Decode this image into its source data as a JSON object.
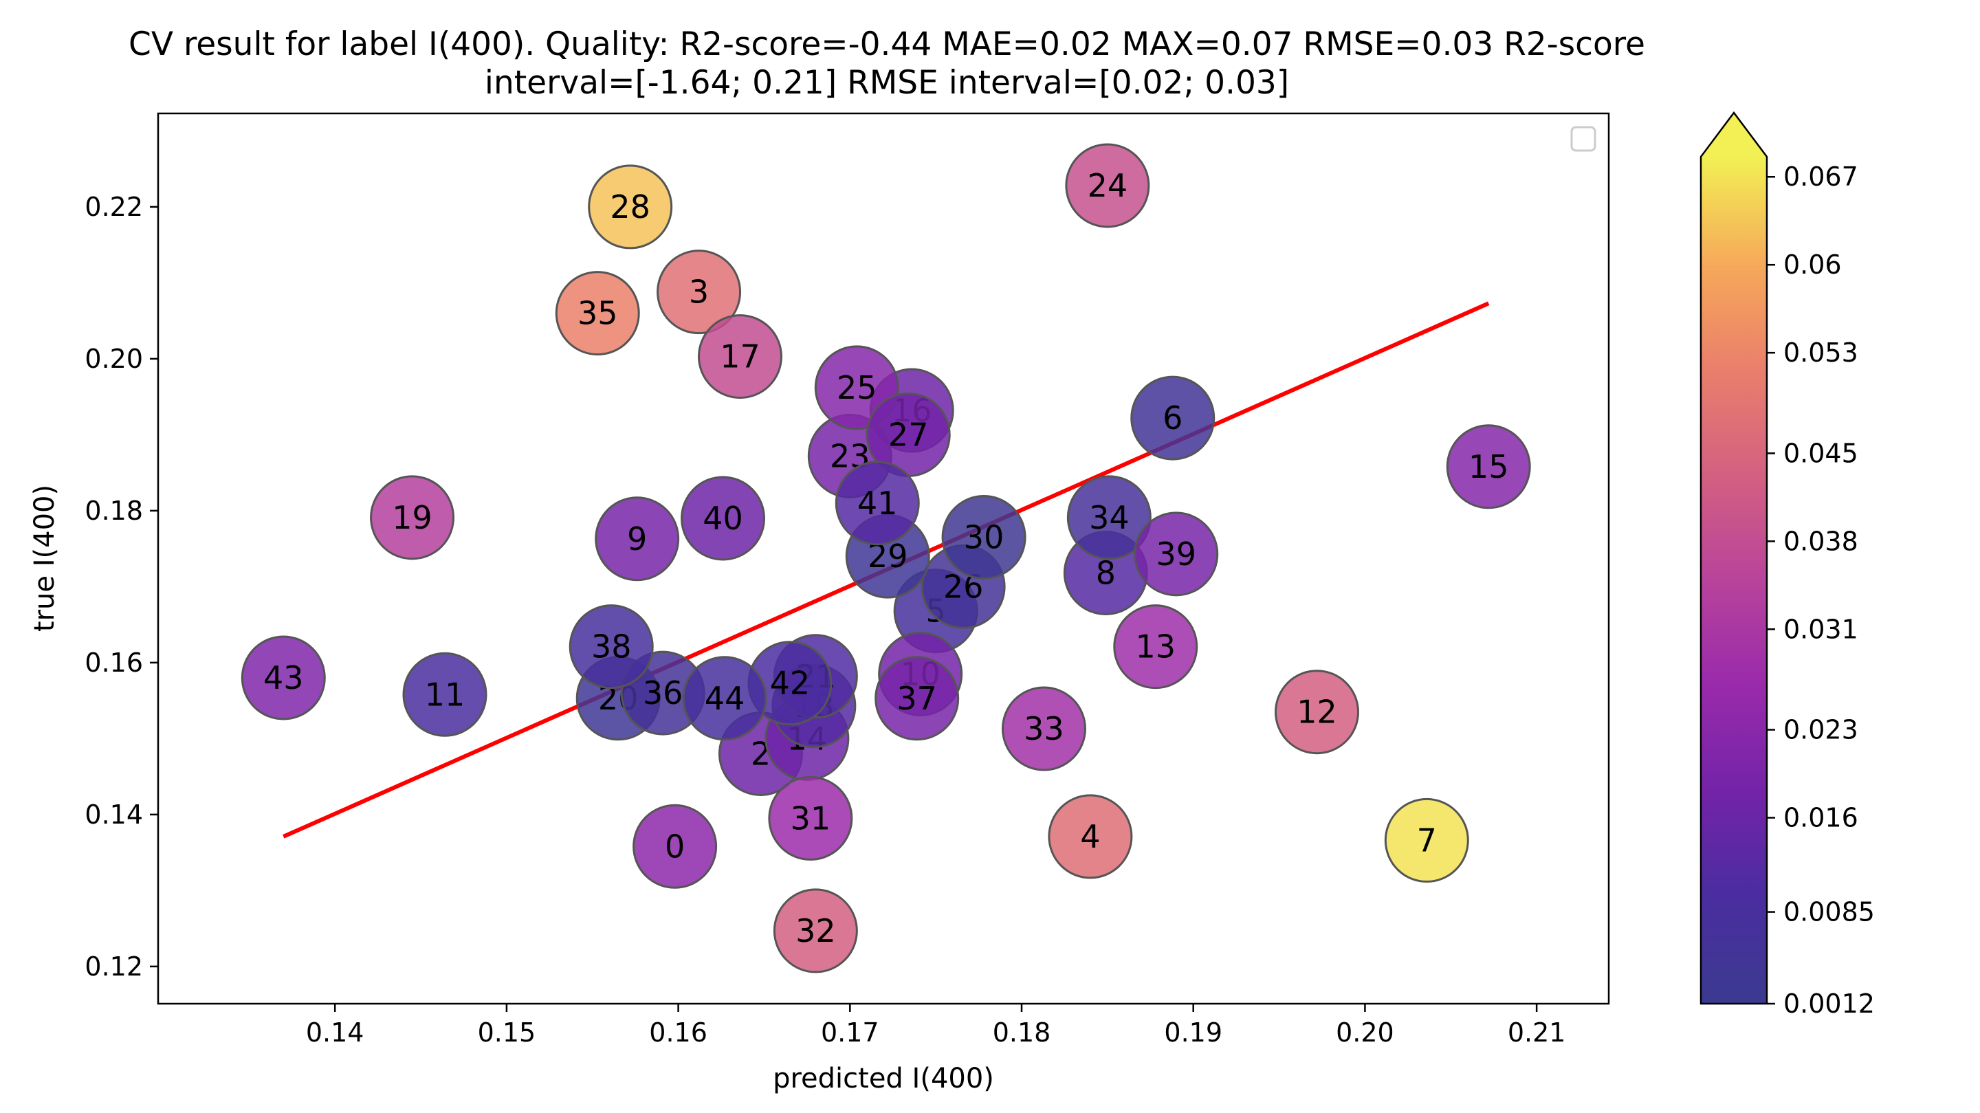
{
  "chart_data": {
    "type": "scatter",
    "title_line1": "CV result for label I(400). Quality: R2-score=-0.44 MAE=0.02 MAX=0.07 RMSE=0.03 R2-score",
    "title_line2": "interval=[-1.64; 0.21] RMSE interval=[0.02; 0.03]",
    "xlabel": "predicted I(400)",
    "ylabel": "true I(400)",
    "xlim": [
      0.1297,
      0.2142
    ],
    "ylim": [
      0.1151,
      0.2323
    ],
    "xticks": [
      0.14,
      0.15,
      0.16,
      0.17,
      0.18,
      0.19,
      0.2,
      0.21
    ],
    "xtick_labels": [
      "0.14",
      "0.15",
      "0.16",
      "0.17",
      "0.18",
      "0.19",
      "0.20",
      "0.21"
    ],
    "yticks": [
      0.12,
      0.14,
      0.16,
      0.18,
      0.2,
      0.22
    ],
    "ytick_labels": [
      "0.12",
      "0.14",
      "0.16",
      "0.18",
      "0.20",
      "0.22"
    ],
    "colorbar": {
      "colormap": "plasma",
      "range": [
        0.0012,
        0.0686
      ],
      "extend": "max",
      "tick_values": [
        0.0012,
        0.0085,
        0.016,
        0.023,
        0.031,
        0.038,
        0.045,
        0.053,
        0.06,
        0.067
      ],
      "tick_labels": [
        "0.0012",
        "0.0085",
        "0.016",
        "0.023",
        "0.031",
        "0.038",
        "0.045",
        "0.053",
        "0.06",
        "0.067"
      ]
    },
    "fit_line": {
      "color": "#ff0000",
      "x": [
        0.137,
        0.2072
      ],
      "y": [
        0.1371,
        0.2073
      ]
    },
    "legend": "top-right (empty)",
    "grid": false,
    "points": [
      {
        "label": "0",
        "x": 0.1598,
        "y": 0.1358,
        "error": 0.024
      },
      {
        "label": "2",
        "x": 0.1648,
        "y": 0.148,
        "error": 0.017
      },
      {
        "label": "3",
        "x": 0.1612,
        "y": 0.2088,
        "error": 0.048
      },
      {
        "label": "4",
        "x": 0.184,
        "y": 0.1371,
        "error": 0.047
      },
      {
        "label": "5",
        "x": 0.175,
        "y": 0.1668,
        "error": 0.008
      },
      {
        "label": "6",
        "x": 0.1888,
        "y": 0.1922,
        "error": 0.005
      },
      {
        "label": "7",
        "x": 0.2036,
        "y": 0.1366,
        "error": 0.067
      },
      {
        "label": "8",
        "x": 0.1849,
        "y": 0.1718,
        "error": 0.012
      },
      {
        "label": "9",
        "x": 0.1576,
        "y": 0.1763,
        "error": 0.019
      },
      {
        "label": "10",
        "x": 0.1741,
        "y": 0.1585,
        "error": 0.018
      },
      {
        "label": "11",
        "x": 0.1464,
        "y": 0.1558,
        "error": 0.009
      },
      {
        "label": "12",
        "x": 0.1972,
        "y": 0.1535,
        "error": 0.043
      },
      {
        "label": "13",
        "x": 0.1878,
        "y": 0.1621,
        "error": 0.028
      },
      {
        "label": "14",
        "x": 0.1675,
        "y": 0.15,
        "error": 0.017
      },
      {
        "label": "15",
        "x": 0.2072,
        "y": 0.1858,
        "error": 0.022
      },
      {
        "label": "16",
        "x": 0.1736,
        "y": 0.1932,
        "error": 0.017
      },
      {
        "label": "17",
        "x": 0.1636,
        "y": 0.2003,
        "error": 0.038
      },
      {
        "label": "18",
        "x": 0.1679,
        "y": 0.1543,
        "error": 0.012
      },
      {
        "label": "19",
        "x": 0.1445,
        "y": 0.1791,
        "error": 0.034
      },
      {
        "label": "20",
        "x": 0.1565,
        "y": 0.1553,
        "error": 0.004
      },
      {
        "label": "21",
        "x": 0.168,
        "y": 0.1582,
        "error": 0.011
      },
      {
        "label": "23",
        "x": 0.17,
        "y": 0.1872,
        "error": 0.019
      },
      {
        "label": "24",
        "x": 0.185,
        "y": 0.2228,
        "error": 0.039
      },
      {
        "label": "25",
        "x": 0.1704,
        "y": 0.1962,
        "error": 0.022
      },
      {
        "label": "26",
        "x": 0.1766,
        "y": 0.17,
        "error": 0.006
      },
      {
        "label": "27",
        "x": 0.1734,
        "y": 0.19,
        "error": 0.018
      },
      {
        "label": "28",
        "x": 0.1572,
        "y": 0.22,
        "error": 0.063
      },
      {
        "label": "29",
        "x": 0.1722,
        "y": 0.174,
        "error": 0.004
      },
      {
        "label": "30",
        "x": 0.1778,
        "y": 0.1765,
        "error": 0.003
      },
      {
        "label": "31",
        "x": 0.1677,
        "y": 0.1395,
        "error": 0.027
      },
      {
        "label": "32",
        "x": 0.168,
        "y": 0.1247,
        "error": 0.043
      },
      {
        "label": "33",
        "x": 0.1813,
        "y": 0.1513,
        "error": 0.029
      },
      {
        "label": "34",
        "x": 0.1851,
        "y": 0.1791,
        "error": 0.007
      },
      {
        "label": "35",
        "x": 0.1553,
        "y": 0.206,
        "error": 0.052
      },
      {
        "label": "36",
        "x": 0.1591,
        "y": 0.156,
        "error": 0.006
      },
      {
        "label": "37",
        "x": 0.1739,
        "y": 0.1553,
        "error": 0.019
      },
      {
        "label": "38",
        "x": 0.1561,
        "y": 0.1621,
        "error": 0.008
      },
      {
        "label": "39",
        "x": 0.189,
        "y": 0.1743,
        "error": 0.019
      },
      {
        "label": "40",
        "x": 0.1626,
        "y": 0.179,
        "error": 0.017
      },
      {
        "label": "41",
        "x": 0.1716,
        "y": 0.181,
        "error": 0.012
      },
      {
        "label": "42",
        "x": 0.1665,
        "y": 0.1573,
        "error": 0.01
      },
      {
        "label": "43",
        "x": 0.137,
        "y": 0.158,
        "error": 0.021
      },
      {
        "label": "44",
        "x": 0.1627,
        "y": 0.1553,
        "error": 0.008
      }
    ]
  }
}
